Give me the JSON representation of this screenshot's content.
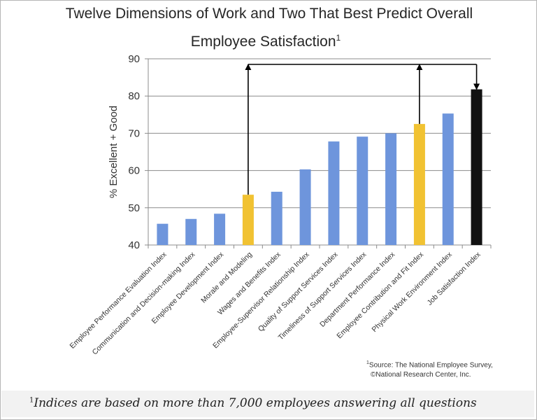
{
  "chart_data": {
    "type": "bar",
    "title": "Twelve Dimensions of Work and Two That Best Predict Overall",
    "title_line2": "Employee Satisfaction",
    "title_marker": "1",
    "ylabel": "% Excellent + Good",
    "ylim": [
      40,
      90
    ],
    "yticks": [
      40,
      50,
      60,
      70,
      80,
      90
    ],
    "grid": true,
    "categories": [
      "Employee Performance Evaluation Index",
      "Communication and Decision-making Index",
      "Employee Development Index",
      "Morale and Modeling",
      "Wages and Benefits Index",
      "Employee-Supervisor Relationship Index",
      "Quality of Support Services Index",
      "Timeliness of Support Services Index",
      "Department Performance Index",
      "Employee Contribution and Fit Index",
      "Physical Work Environment Index",
      "Job Satisfaction Index"
    ],
    "values": [
      45.7,
      47.0,
      48.4,
      53.5,
      54.3,
      60.3,
      67.8,
      69.1,
      70.0,
      72.5,
      75.3,
      81.8
    ],
    "bar_colors": [
      "#6e95dc",
      "#6e95dc",
      "#6e95dc",
      "#f1c232",
      "#6e95dc",
      "#6e95dc",
      "#6e95dc",
      "#6e95dc",
      "#6e95dc",
      "#f1c232",
      "#6e95dc",
      "#111111"
    ],
    "arrows": {
      "from": [
        3,
        9
      ],
      "to": 11,
      "level": 90
    }
  },
  "source": {
    "marker": "1",
    "line1": "Source: The National Employee Survey,",
    "line2": "©National Research Center, Inc."
  },
  "footnote": {
    "marker": "1",
    "text": "Indices are based on more than 7,000 employees answering all questions"
  }
}
